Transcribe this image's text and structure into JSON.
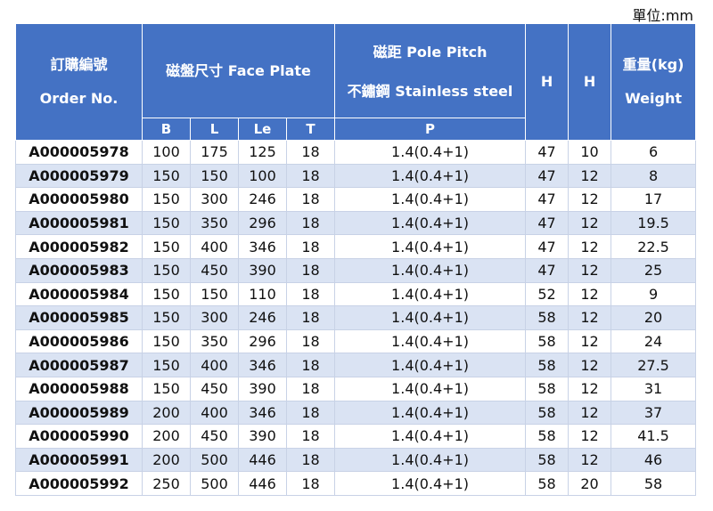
{
  "unit_label": "單位:mm",
  "header": {
    "order_zh": "訂購編號",
    "order_en": "Order No.",
    "face_plate": "磁盤尺寸 Face Plate",
    "pitch_line1": "磁距  Pole Pitch",
    "pitch_line2": "不鏽鋼 Stainless steel",
    "h1": "H",
    "h2": "H",
    "weight_zh": "重量(kg)",
    "weight_en": "Weight",
    "sub_b": "B",
    "sub_l": "L",
    "sub_le": "Le",
    "sub_t": "T",
    "sub_p": "P"
  },
  "rows": [
    {
      "order": "A000005978",
      "b": "100",
      "l": "175",
      "le": "125",
      "t": "18",
      "p": "1.4(0.4+1)",
      "h1": "47",
      "h2": "10",
      "weight": "6"
    },
    {
      "order": "A000005979",
      "b": "150",
      "l": "150",
      "le": "100",
      "t": "18",
      "p": "1.4(0.4+1)",
      "h1": "47",
      "h2": "12",
      "weight": "8"
    },
    {
      "order": "A000005980",
      "b": "150",
      "l": "300",
      "le": "246",
      "t": "18",
      "p": "1.4(0.4+1)",
      "h1": "47",
      "h2": "12",
      "weight": "17"
    },
    {
      "order": "A000005981",
      "b": "150",
      "l": "350",
      "le": "296",
      "t": "18",
      "p": "1.4(0.4+1)",
      "h1": "47",
      "h2": "12",
      "weight": "19.5"
    },
    {
      "order": "A000005982",
      "b": "150",
      "l": "400",
      "le": "346",
      "t": "18",
      "p": "1.4(0.4+1)",
      "h1": "47",
      "h2": "12",
      "weight": "22.5"
    },
    {
      "order": "A000005983",
      "b": "150",
      "l": "450",
      "le": "390",
      "t": "18",
      "p": "1.4(0.4+1)",
      "h1": "47",
      "h2": "12",
      "weight": "25"
    },
    {
      "order": "A000005984",
      "b": "150",
      "l": "150",
      "le": "110",
      "t": "18",
      "p": "1.4(0.4+1)",
      "h1": "52",
      "h2": "12",
      "weight": "9"
    },
    {
      "order": "A000005985",
      "b": "150",
      "l": "300",
      "le": "246",
      "t": "18",
      "p": "1.4(0.4+1)",
      "h1": "58",
      "h2": "12",
      "weight": "20"
    },
    {
      "order": "A000005986",
      "b": "150",
      "l": "350",
      "le": "296",
      "t": "18",
      "p": "1.4(0.4+1)",
      "h1": "58",
      "h2": "12",
      "weight": "24"
    },
    {
      "order": "A000005987",
      "b": "150",
      "l": "400",
      "le": "346",
      "t": "18",
      "p": "1.4(0.4+1)",
      "h1": "58",
      "h2": "12",
      "weight": "27.5"
    },
    {
      "order": "A000005988",
      "b": "150",
      "l": "450",
      "le": "390",
      "t": "18",
      "p": "1.4(0.4+1)",
      "h1": "58",
      "h2": "12",
      "weight": "31"
    },
    {
      "order": "A000005989",
      "b": "200",
      "l": "400",
      "le": "346",
      "t": "18",
      "p": "1.4(0.4+1)",
      "h1": "58",
      "h2": "12",
      "weight": "37"
    },
    {
      "order": "A000005990",
      "b": "200",
      "l": "450",
      "le": "390",
      "t": "18",
      "p": "1.4(0.4+1)",
      "h1": "58",
      "h2": "12",
      "weight": "41.5"
    },
    {
      "order": "A000005991",
      "b": "200",
      "l": "500",
      "le": "446",
      "t": "18",
      "p": "1.4(0.4+1)",
      "h1": "58",
      "h2": "12",
      "weight": "46"
    },
    {
      "order": "A000005992",
      "b": "250",
      "l": "500",
      "le": "446",
      "t": "18",
      "p": "1.4(0.4+1)",
      "h1": "58",
      "h2": "20",
      "weight": "58"
    }
  ],
  "colors": {
    "header_bg": "#4472c4",
    "stripe": "#dae3f3",
    "header_text": "#ffffff"
  }
}
